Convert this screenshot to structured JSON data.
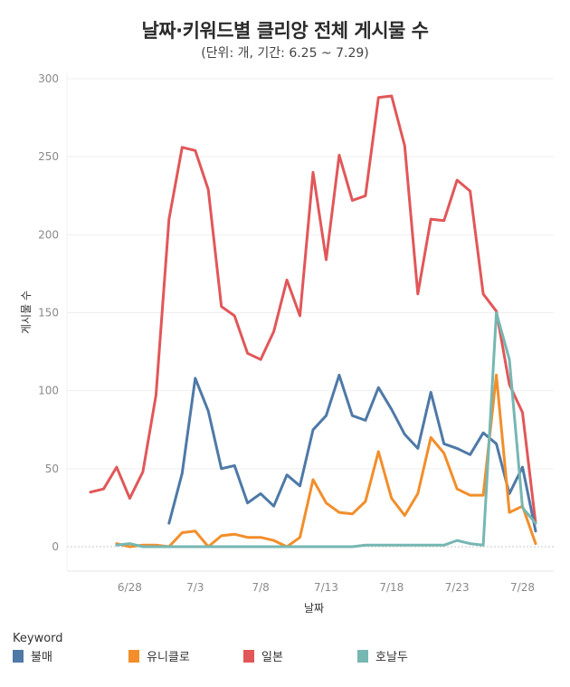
{
  "header": {
    "title": "날짜·키워드별 클리앙 전체 게시물 수",
    "subtitle": "(단위: 개, 기간: 6.25 ~ 7.29)"
  },
  "legend": {
    "title": "Keyword",
    "items": [
      {
        "label": "불매",
        "color": "#4e79a7"
      },
      {
        "label": "유니클로",
        "color": "#f28e2b"
      },
      {
        "label": "일본",
        "color": "#e15759"
      },
      {
        "label": "호날두",
        "color": "#76b7b2"
      }
    ]
  },
  "chart_data": {
    "type": "line",
    "title": "날짜·키워드별 클리앙 전체 게시물 수",
    "subtitle": "(단위: 개, 기간: 6.25 ~ 7.29)",
    "xlabel": "날짜",
    "ylabel": "게시물 수",
    "ylim": [
      0,
      300
    ],
    "yticks": [
      0,
      50,
      100,
      150,
      200,
      250,
      300
    ],
    "xticks": [
      "6/28",
      "7/3",
      "7/8",
      "7/13",
      "7/18",
      "7/23",
      "7/28"
    ],
    "grid": true,
    "legend_position": "bottom",
    "x": [
      "6/25",
      "6/26",
      "6/27",
      "6/28",
      "6/29",
      "6/30",
      "7/1",
      "7/2",
      "7/3",
      "7/4",
      "7/5",
      "7/6",
      "7/7",
      "7/8",
      "7/9",
      "7/10",
      "7/11",
      "7/12",
      "7/13",
      "7/14",
      "7/15",
      "7/16",
      "7/17",
      "7/18",
      "7/19",
      "7/20",
      "7/21",
      "7/22",
      "7/23",
      "7/24",
      "7/25",
      "7/26",
      "7/27",
      "7/28",
      "7/29"
    ],
    "series": [
      {
        "name": "일본",
        "color": "#e15759",
        "values": [
          35,
          37,
          51,
          31,
          48,
          97,
          210,
          256,
          254,
          229,
          154,
          148,
          124,
          120,
          138,
          171,
          148,
          240,
          184,
          251,
          222,
          225,
          288,
          289,
          257,
          162,
          210,
          209,
          235,
          228,
          162,
          151,
          104,
          86,
          15
        ]
      },
      {
        "name": "불매",
        "color": "#4e79a7",
        "values": [
          null,
          null,
          null,
          null,
          null,
          null,
          15,
          47,
          108,
          87,
          50,
          52,
          28,
          34,
          26,
          46,
          39,
          75,
          84,
          110,
          84,
          81,
          102,
          88,
          72,
          63,
          99,
          66,
          63,
          59,
          73,
          66,
          34,
          51,
          10
        ]
      },
      {
        "name": "유니클로",
        "color": "#f28e2b",
        "values": [
          null,
          null,
          2,
          0,
          1,
          1,
          0,
          9,
          10,
          0,
          7,
          8,
          6,
          6,
          4,
          0,
          6,
          43,
          28,
          22,
          21,
          29,
          61,
          31,
          20,
          34,
          70,
          60,
          37,
          33,
          33,
          110,
          22,
          26,
          2
        ]
      },
      {
        "name": "호날두",
        "color": "#76b7b2",
        "values": [
          null,
          null,
          1,
          2,
          0,
          0,
          0,
          0,
          0,
          0,
          0,
          0,
          0,
          0,
          0,
          0,
          0,
          0,
          0,
          0,
          0,
          1,
          1,
          1,
          1,
          1,
          1,
          1,
          4,
          2,
          1,
          150,
          120,
          25,
          15
        ]
      }
    ]
  }
}
